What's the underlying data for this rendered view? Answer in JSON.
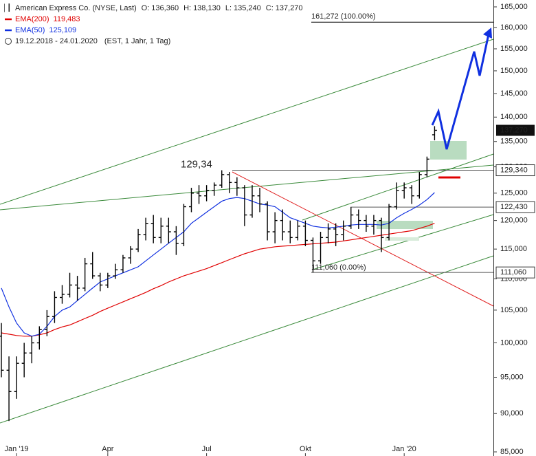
{
  "chart_data": {
    "type": "ohlc",
    "title": "American Express Co. (NYSE, Last)",
    "header_values": [
      {
        "name": "O:",
        "value": 136.36,
        "label": "136,360"
      },
      {
        "name": "H:",
        "value": 138.13,
        "label": "138,130"
      },
      {
        "name": "L:",
        "value": 135.24,
        "label": "135,240"
      },
      {
        "name": "C:",
        "value": 137.27,
        "label": "137,270"
      }
    ],
    "period": "19.12.2018 - 24.01.2020",
    "period_note": "(EST, 1 Jahr, 1 Tag)",
    "categories": [
      null,
      null,
      "Jan '19",
      null,
      null,
      null,
      null,
      null,
      null,
      null,
      null,
      null,
      null,
      null,
      "Apr",
      null,
      null,
      null,
      null,
      null,
      null,
      null,
      null,
      null,
      null,
      null,
      null,
      "Jul",
      null,
      null,
      null,
      null,
      null,
      null,
      null,
      null,
      null,
      null,
      null,
      null,
      "Okt",
      null,
      null,
      null,
      null,
      null,
      null,
      null,
      null,
      null,
      null,
      null,
      null,
      "Jan '20",
      null,
      null,
      null,
      null
    ],
    "open": [
      101,
      96,
      93,
      97,
      98.5,
      100,
      102,
      104,
      107,
      107.5,
      109,
      108.5,
      112.5,
      110.5,
      109,
      110.5,
      111.5,
      113.5,
      115,
      117.5,
      119.5,
      117,
      119,
      118,
      116,
      122.5,
      125,
      124.5,
      125.5,
      126.5,
      128.5,
      127,
      126,
      121,
      124.5,
      123,
      118,
      120,
      118,
      117,
      119,
      116.5,
      113,
      117,
      118.5,
      117.5,
      119,
      121,
      120,
      119,
      120,
      117,
      122.5,
      125.5,
      126,
      124.5,
      128.5,
      136.36
    ],
    "high": [
      103,
      98,
      98,
      100,
      101,
      102.5,
      105,
      108,
      109,
      111,
      110.5,
      113.5,
      114.5,
      111,
      111,
      112.5,
      114,
      115.5,
      118.5,
      120.5,
      121,
      120.5,
      120.5,
      119,
      123,
      126,
      126.5,
      126.5,
      127,
      129.34,
      129,
      128,
      126.5,
      126.5,
      126,
      123.5,
      121.5,
      122,
      120,
      120,
      120,
      117,
      118,
      119.5,
      119.5,
      120,
      122.43,
      122,
      121,
      121,
      120.5,
      123,
      127,
      127,
      126.5,
      129,
      132,
      138.13
    ],
    "low": [
      95,
      89,
      92,
      95,
      97,
      99,
      101,
      103,
      106,
      107,
      106.5,
      108,
      110,
      108,
      108.5,
      110,
      111,
      112.5,
      114.5,
      116.5,
      116,
      116,
      116,
      114,
      115.5,
      121.5,
      123,
      123.5,
      124.5,
      126,
      125,
      124.5,
      119,
      120.5,
      121.5,
      116.5,
      116,
      116.5,
      116,
      116.5,
      115.5,
      111.06,
      112.5,
      116,
      115.5,
      116.5,
      118.5,
      118.5,
      118,
      117.5,
      114.5,
      116.5,
      122,
      124,
      123,
      124,
      128,
      135.24
    ],
    "close": [
      96,
      93,
      97,
      98.5,
      100,
      102,
      104,
      107,
      107.5,
      109,
      108.5,
      112.5,
      110.5,
      109,
      110.5,
      111.5,
      113.5,
      115,
      117.5,
      119.5,
      117,
      119,
      118,
      116,
      122.5,
      125,
      124.5,
      125.5,
      126.5,
      128.5,
      127,
      126,
      121,
      124.5,
      123,
      118,
      120,
      118,
      117,
      119,
      116.5,
      113,
      117,
      118.5,
      117.5,
      119,
      121,
      120,
      119,
      120,
      117,
      122.5,
      125.5,
      126,
      124.5,
      128.5,
      131.5,
      137.27
    ],
    "color": "#000000",
    "series": [
      {
        "name": "EMA(200)",
        "color": "#e00000",
        "last": {
          "value": 119.483,
          "label": "119,483"
        },
        "values": [
          101.5,
          101.3,
          101.1,
          101,
          101,
          101.2,
          101.5,
          102,
          102.4,
          102.7,
          103.2,
          103.7,
          104.2,
          104.8,
          105.3,
          105.8,
          106.3,
          106.8,
          107.3,
          107.8,
          108.4,
          108.9,
          109.5,
          110,
          110.5,
          110.9,
          111.3,
          111.7,
          112.2,
          112.7,
          113.2,
          113.7,
          114.2,
          114.6,
          115,
          115.2,
          115.4,
          115.5,
          115.6,
          115.7,
          115.8,
          115.9,
          116,
          116.1,
          116.2,
          116.4,
          116.6,
          116.8,
          117,
          117.2,
          117.4,
          117.6,
          117.8,
          118,
          118.2,
          118.6,
          119,
          119.5
        ]
      },
      {
        "name": "EMA(50)",
        "color": "#1030e0",
        "last": {
          "value": 125.109,
          "label": "125,109"
        },
        "values": [
          108.5,
          105.5,
          103,
          101.5,
          101,
          101.3,
          102.5,
          104,
          105,
          105.5,
          106.5,
          107.5,
          108.5,
          109.5,
          110,
          110.5,
          111,
          111.5,
          112,
          113,
          114,
          115,
          116,
          117,
          118,
          119.5,
          120.5,
          121.5,
          122.5,
          123.5,
          124,
          124.2,
          124,
          123.5,
          123,
          122.8,
          122.5,
          121.5,
          120.5,
          120,
          119.5,
          119,
          118.8,
          118.7,
          118.8,
          119,
          119.2,
          119.3,
          119.3,
          119.3,
          119.2,
          119.5,
          120.5,
          121.3,
          122,
          122.8,
          123.8,
          125.1
        ]
      }
    ],
    "last_price": {
      "value": 137.27,
      "label": "137,270"
    },
    "levels": [
      {
        "value": 161.272,
        "note": "161,272 (100.00%)"
      },
      {
        "value": 129.34,
        "label": "129,340",
        "note": "129,34"
      },
      {
        "value": 122.43,
        "label": "122,430"
      },
      {
        "value": 111.06,
        "label": "111,060",
        "note": "111,060 (0.00%)"
      }
    ],
    "log_scale": true,
    "ylim": [
      84.48,
      166.7
    ],
    "yticks": [
      {
        "value": 85,
        "label": "85,000"
      },
      {
        "value": 90,
        "label": "90,000"
      },
      {
        "value": 95,
        "label": "95,000"
      },
      {
        "value": 100,
        "label": "100,000"
      },
      {
        "value": 105,
        "label": "105,000"
      },
      {
        "value": 110,
        "label": "110,000"
      },
      {
        "value": 115,
        "label": "115,000"
      },
      {
        "value": 120,
        "label": "120,000"
      },
      {
        "value": 125,
        "label": "125,000"
      },
      {
        "value": 130,
        "label": "130,000"
      },
      {
        "value": 135,
        "label": "135,000"
      },
      {
        "value": 140,
        "label": "140,000"
      },
      {
        "value": 145,
        "label": "145,000"
      },
      {
        "value": 150,
        "label": "150,000"
      },
      {
        "value": 155,
        "label": "155,000"
      },
      {
        "value": 160,
        "label": "160,000"
      },
      {
        "value": 165,
        "label": "165,000"
      }
    ]
  }
}
